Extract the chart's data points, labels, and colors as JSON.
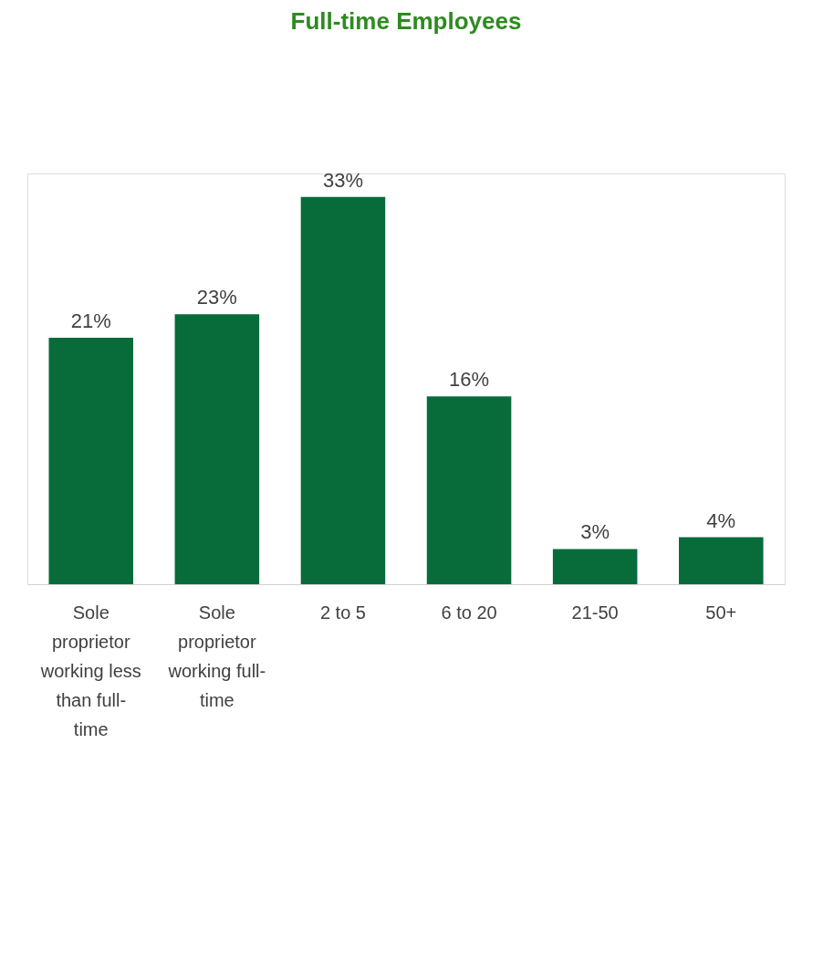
{
  "chart_data": {
    "type": "bar",
    "title": "Full-time Employees",
    "categories": [
      "Sole proprietor working less than full-time",
      "Sole proprietor working full-time",
      "2 to 5",
      "6 to 20",
      "21-50",
      "50+"
    ],
    "values": [
      21,
      23,
      33,
      16,
      3,
      4
    ],
    "value_labels": [
      "21%",
      "23%",
      "33%",
      "16%",
      "3%",
      "4%"
    ],
    "color": "#076b3a"
  }
}
